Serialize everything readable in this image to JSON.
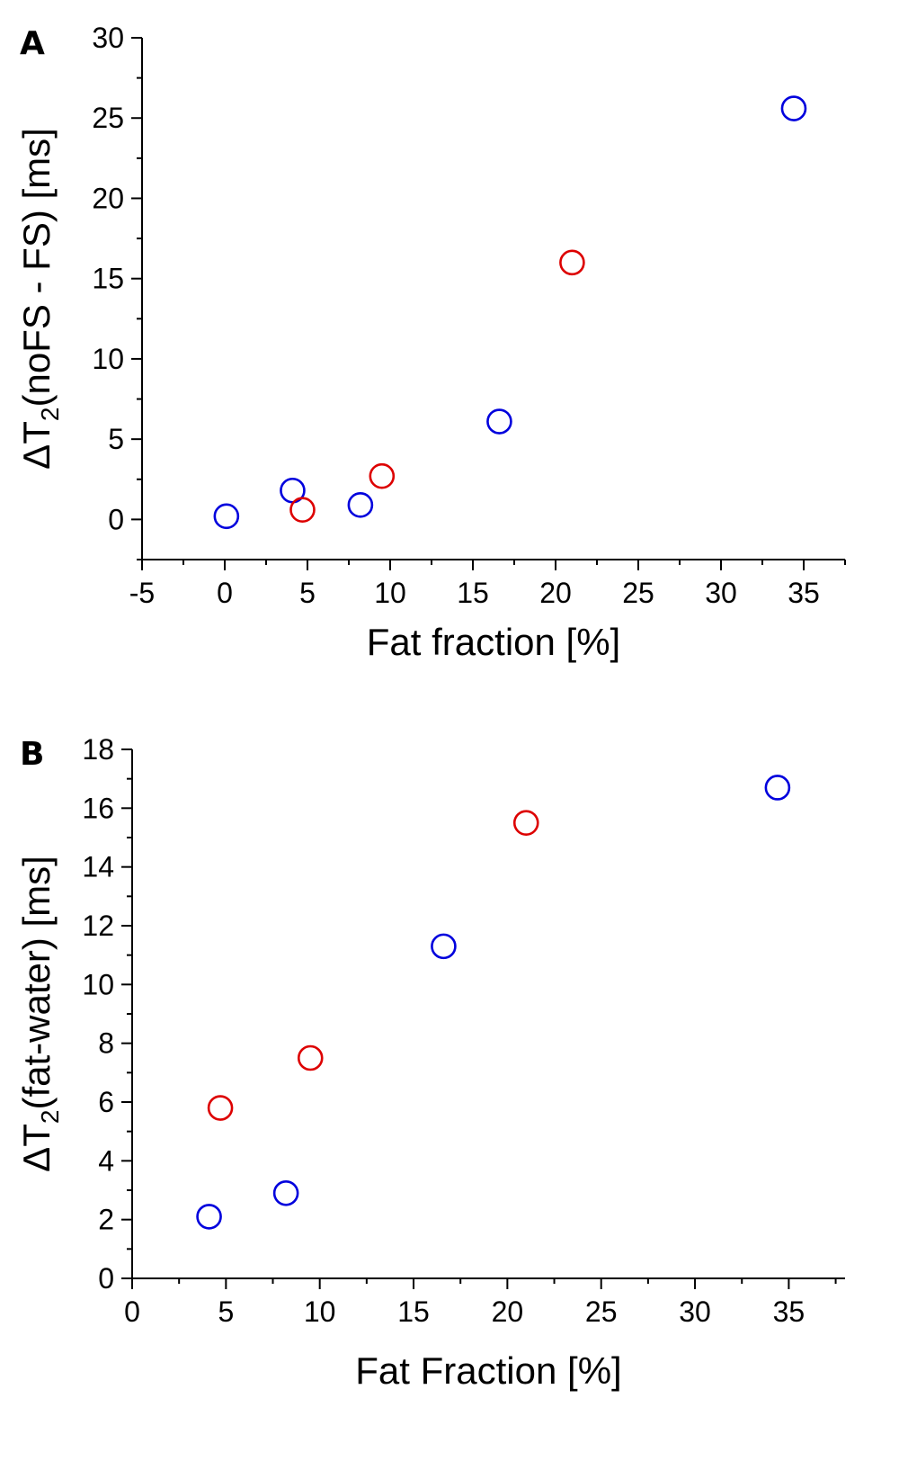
{
  "chart_data": [
    {
      "type": "scatter",
      "panel_label": "A",
      "xlabel": "Fat fraction [%]",
      "ylabel_prefix": "ΔT",
      "ylabel_sub": "2",
      "ylabel_suffix": "(noFS - FS) [ms]",
      "xlim": [
        -5,
        37.5
      ],
      "ylim": [
        -2.5,
        30
      ],
      "xticks": [
        -5,
        0,
        5,
        10,
        15,
        20,
        25,
        30,
        35
      ],
      "yticks": [
        0,
        5,
        10,
        15,
        20,
        25,
        30
      ],
      "grid": false,
      "series": [
        {
          "name": "blue",
          "color": "#0000dd",
          "x": [
            0.1,
            4.1,
            8.2,
            16.6,
            34.4
          ],
          "y": [
            0.2,
            1.8,
            0.9,
            6.1,
            25.6
          ]
        },
        {
          "name": "red",
          "color": "#dd0000",
          "x": [
            4.7,
            9.5,
            21.0
          ],
          "y": [
            0.6,
            2.7,
            16.0
          ]
        }
      ]
    },
    {
      "type": "scatter",
      "panel_label": "B",
      "xlabel": "Fat Fraction [%]",
      "ylabel_prefix": "ΔT",
      "ylabel_sub": "2",
      "ylabel_suffix": "(fat-water) [ms]",
      "xlim": [
        0,
        38
      ],
      "ylim": [
        0,
        18
      ],
      "xticks": [
        0,
        5,
        10,
        15,
        20,
        25,
        30,
        35
      ],
      "yticks": [
        0,
        2,
        4,
        6,
        8,
        10,
        12,
        14,
        16,
        18
      ],
      "grid": false,
      "series": [
        {
          "name": "blue",
          "color": "#0000dd",
          "x": [
            4.1,
            8.2,
            16.6,
            34.4
          ],
          "y": [
            2.1,
            2.9,
            11.3,
            16.7
          ]
        },
        {
          "name": "red",
          "color": "#dd0000",
          "x": [
            4.7,
            9.5,
            21.0
          ],
          "y": [
            5.8,
            7.5,
            15.5
          ]
        }
      ]
    }
  ]
}
